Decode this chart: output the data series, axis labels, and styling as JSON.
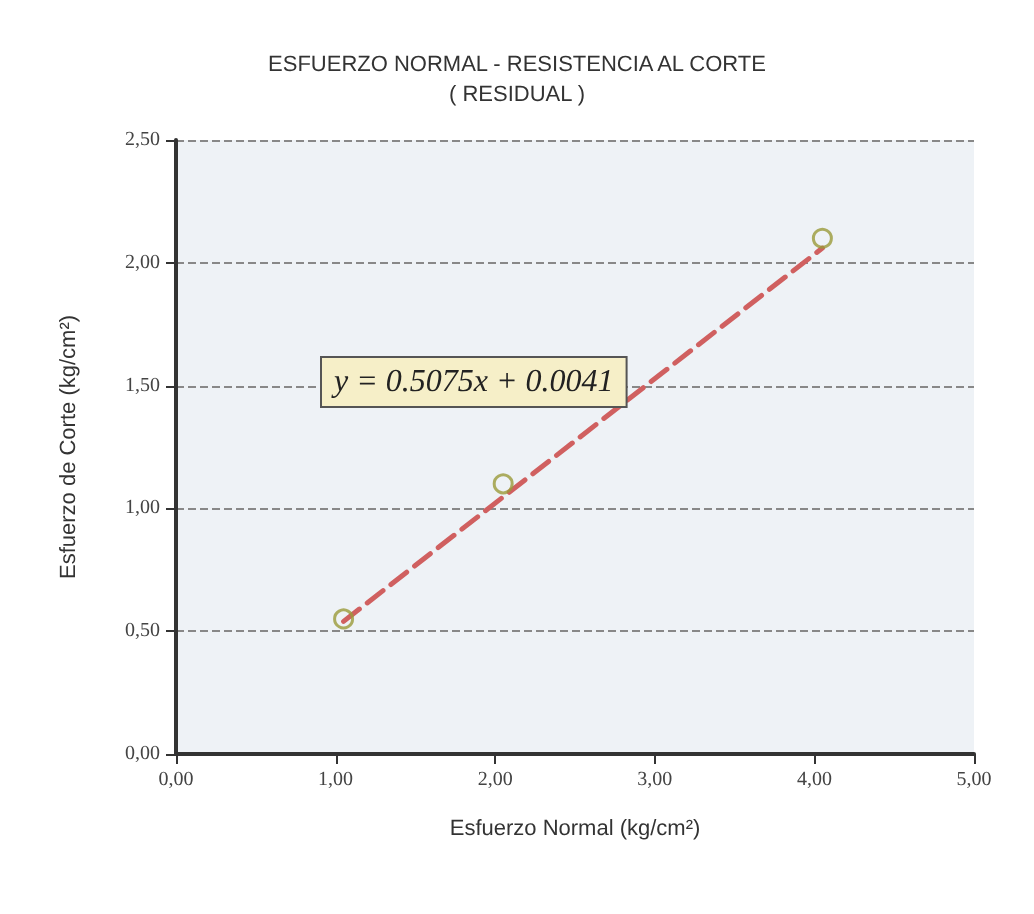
{
  "chart_data": {
    "type": "scatter",
    "title": "ESFUERZO NORMAL - RESISTENCIA AL CORTE\n( RESIDUAL )",
    "xlabel": "Esfuerzo Normal (kg/cm²)",
    "ylabel": "Esfuerzo de Corte (kg/cm²)",
    "series": [
      {
        "color": "#9a9a3a",
        "marker": "circle",
        "x": [
          1.05,
          2.05,
          4.05
        ],
        "values": [
          0.55,
          1.1,
          2.1
        ]
      },
      {
        "type": "line",
        "color": "#d06060",
        "line_style": "dashed",
        "marker": "none",
        "x": [
          1.05,
          4.05
        ],
        "values": [
          0.54,
          2.06
        ]
      }
    ],
    "annotations": [
      "y = 0.5075x + 0.0041"
    ],
    "xlim": [
      0,
      5
    ],
    "xticks": [
      {
        "value": 0,
        "label": "0,00"
      },
      {
        "value": 1,
        "label": "1,00"
      },
      {
        "value": 2,
        "label": "2,00"
      },
      {
        "value": 3,
        "label": "3,00"
      },
      {
        "value": 4,
        "label": "4,00"
      },
      {
        "value": 5,
        "label": "5,00"
      }
    ],
    "ylim": [
      0,
      2.5
    ],
    "yticks": [
      {
        "value": 0,
        "label": "0,00"
      },
      {
        "value": 0.5,
        "label": "0,50"
      },
      {
        "value": 1,
        "label": "1,00"
      },
      {
        "value": 1.5,
        "label": "1,50"
      },
      {
        "value": 2,
        "label": "2,00"
      },
      {
        "value": 2.5,
        "label": "2,50"
      }
    ],
    "grid": "y"
  }
}
